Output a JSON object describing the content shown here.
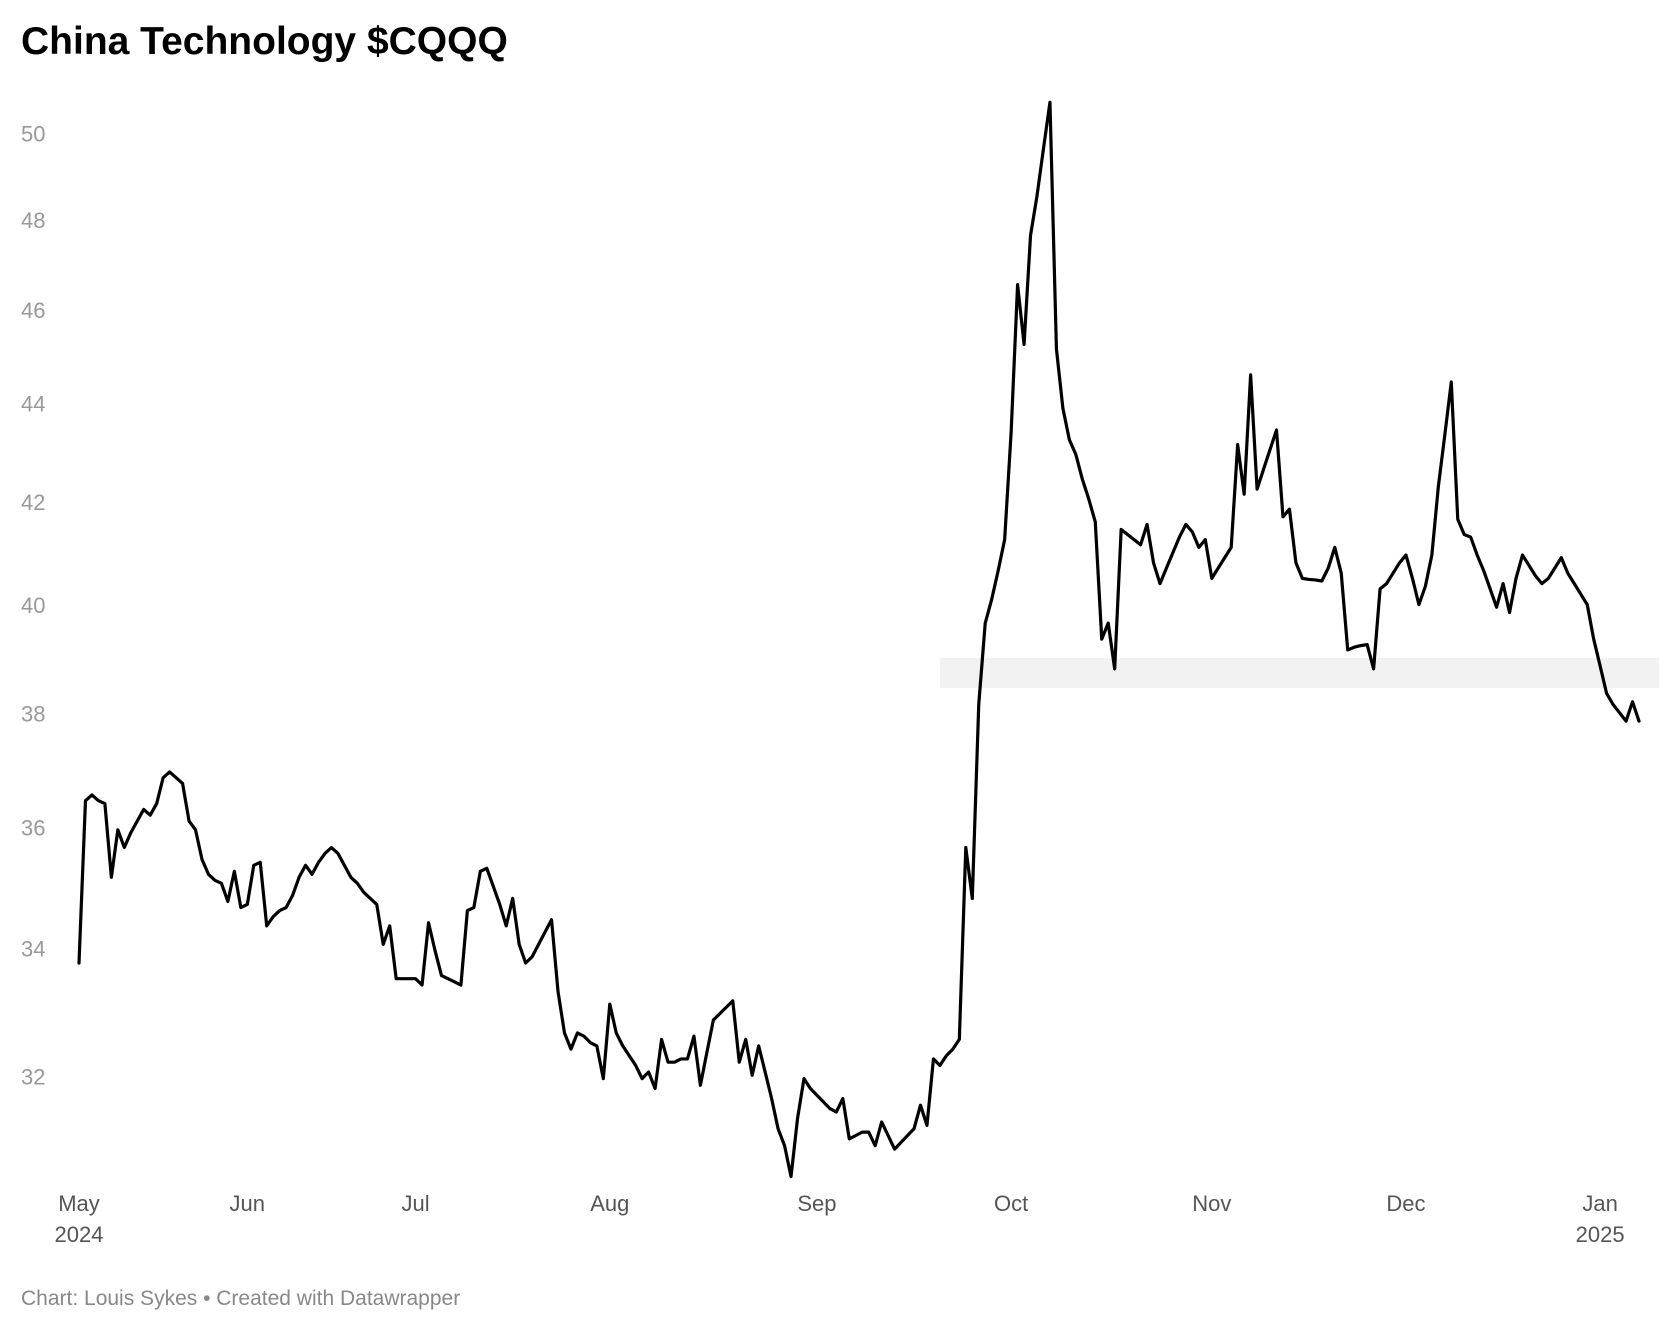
{
  "chart_data": {
    "type": "line",
    "title": "China Technology $CQQQ",
    "source": "Chart: Louis Sykes • Created with Datawrapper",
    "categories": [
      "May\n2024",
      null,
      null,
      null,
      null,
      null,
      null,
      null,
      null,
      null,
      null,
      null,
      null,
      null,
      null,
      null,
      null,
      null,
      null,
      null,
      null,
      null,
      null,
      null,
      null,
      null,
      "Jun",
      null,
      null,
      null,
      null,
      null,
      null,
      null,
      null,
      null,
      null,
      null,
      null,
      null,
      null,
      null,
      null,
      null,
      null,
      null,
      null,
      null,
      null,
      null,
      null,
      null,
      "Jul",
      null,
      null,
      null,
      null,
      null,
      null,
      null,
      null,
      null,
      null,
      null,
      null,
      null,
      null,
      null,
      null,
      null,
      null,
      null,
      null,
      null,
      null,
      null,
      null,
      null,
      null,
      null,
      null,
      null,
      "Aug",
      null,
      null,
      null,
      null,
      null,
      null,
      null,
      null,
      null,
      null,
      null,
      null,
      null,
      null,
      null,
      null,
      null,
      null,
      null,
      null,
      null,
      null,
      null,
      null,
      null,
      null,
      null,
      null,
      null,
      null,
      null,
      "Sep",
      null,
      null,
      null,
      null,
      null,
      null,
      null,
      null,
      null,
      null,
      null,
      null,
      null,
      null,
      null,
      null,
      null,
      null,
      null,
      null,
      null,
      null,
      null,
      null,
      null,
      null,
      null,
      null,
      null,
      "Oct",
      null,
      null,
      null,
      null,
      null,
      null,
      null,
      null,
      null,
      null,
      null,
      null,
      null,
      null,
      null,
      null,
      null,
      null,
      null,
      null,
      null,
      null,
      null,
      null,
      null,
      null,
      null,
      null,
      null,
      null,
      "Nov",
      null,
      null,
      null,
      null,
      null,
      null,
      null,
      null,
      null,
      null,
      null,
      null,
      null,
      null,
      null,
      null,
      null,
      null,
      null,
      null,
      null,
      null,
      null,
      null,
      null,
      null,
      null,
      null,
      null,
      "Dec",
      null,
      null,
      null,
      null,
      null,
      null,
      null,
      null,
      null,
      null,
      null,
      null,
      null,
      null,
      null,
      null,
      null,
      null,
      null,
      null,
      null,
      null,
      null,
      null,
      null,
      null,
      null,
      null,
      null,
      "Jan\n2025",
      null,
      null,
      null,
      null,
      null,
      null
    ],
    "series": [
      {
        "name": "CQQQ",
        "color": "#000000",
        "values": [
          33.8,
          36.5,
          36.6,
          36.5,
          36.45,
          35.2,
          36.0,
          35.7,
          35.95,
          36.15,
          36.35,
          36.25,
          36.45,
          36.9,
          37.0,
          36.9,
          36.8,
          36.15,
          36.0,
          35.5,
          35.25,
          35.15,
          35.1,
          34.8,
          35.3,
          34.7,
          34.75,
          35.4,
          35.45,
          34.4,
          34.55,
          34.65,
          34.7,
          34.9,
          35.2,
          35.4,
          35.25,
          35.45,
          35.6,
          35.7,
          35.6,
          35.4,
          35.2,
          35.1,
          34.95,
          34.85,
          34.75,
          34.1,
          34.4,
          33.55,
          33.55,
          33.55,
          33.55,
          33.45,
          34.45,
          34.0,
          33.6,
          33.55,
          33.5,
          33.45,
          34.65,
          34.7,
          35.3,
          35.35,
          35.05,
          34.75,
          34.4,
          34.85,
          34.1,
          33.8,
          33.9,
          34.1,
          34.3,
          34.5,
          33.35,
          32.7,
          32.45,
          32.7,
          32.65,
          32.55,
          32.5,
          32.0,
          33.15,
          32.7,
          32.5,
          32.35,
          32.2,
          32.0,
          32.1,
          31.85,
          32.6,
          32.25,
          32.25,
          32.3,
          32.3,
          32.65,
          31.9,
          32.4,
          32.9,
          33.0,
          33.1,
          33.2,
          32.25,
          32.6,
          32.05,
          32.5,
          32.1,
          31.7,
          31.25,
          31.0,
          30.55,
          31.4,
          32.0,
          31.85,
          31.75,
          31.65,
          31.55,
          31.5,
          31.7,
          31.1,
          31.15,
          31.2,
          31.2,
          31.0,
          31.35,
          31.15,
          30.95,
          31.05,
          31.15,
          31.25,
          31.6,
          31.3,
          32.3,
          32.2,
          32.35,
          32.45,
          32.6,
          35.7,
          34.85,
          38.2,
          39.7,
          40.15,
          40.7,
          41.3,
          43.45,
          46.6,
          45.3,
          47.7,
          48.6,
          49.7,
          50.8,
          45.2,
          43.95,
          43.3,
          43.0,
          42.5,
          42.1,
          41.65,
          39.4,
          39.7,
          38.85,
          41.5,
          41.4,
          41.3,
          41.2,
          41.6,
          40.85,
          40.45,
          40.75,
          41.05,
          41.35,
          41.6,
          41.45,
          41.15,
          41.3,
          40.55,
          40.75,
          40.95,
          41.15,
          43.2,
          42.2,
          44.65,
          42.3,
          42.7,
          43.1,
          43.5,
          41.75,
          41.9,
          40.85,
          40.55,
          40.53,
          40.52,
          40.5,
          40.75,
          41.15,
          40.65,
          39.2,
          39.25,
          39.28,
          39.3,
          38.85,
          40.35,
          40.45,
          40.65,
          40.85,
          41.0,
          40.55,
          40.05,
          40.4,
          41.0,
          42.35,
          43.4,
          44.5,
          41.7,
          41.4,
          41.35,
          41.0,
          40.7,
          40.35,
          40.0,
          40.45,
          39.9,
          40.55,
          41.0,
          40.8,
          40.6,
          40.45,
          40.55,
          40.75,
          40.95,
          40.65,
          40.45,
          40.25,
          40.05,
          39.4,
          38.9,
          38.4,
          38.2,
          38.05,
          37.9,
          38.25,
          37.9
        ]
      }
    ],
    "ylim": [
      30.4,
      51
    ],
    "yticks": [
      32,
      34,
      36,
      38,
      40,
      42,
      44,
      46,
      48,
      50
    ],
    "log_y": true,
    "grid": false,
    "band": {
      "y": [
        38.5,
        39.05
      ],
      "from": 133,
      "color": "#f2f2f2"
    }
  }
}
